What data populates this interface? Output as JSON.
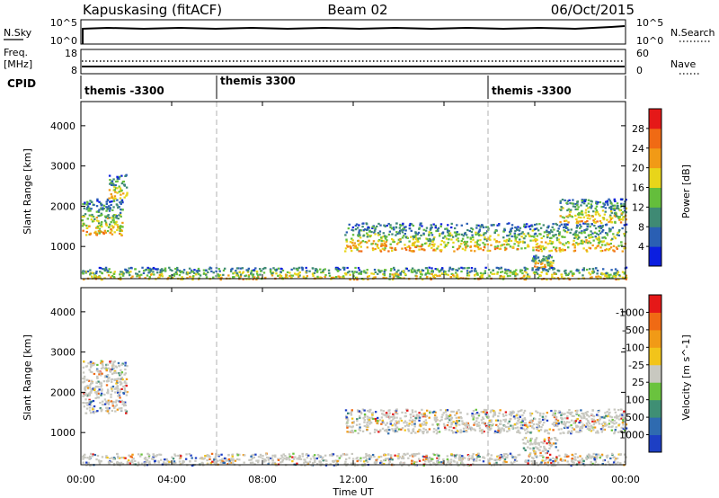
{
  "header": {
    "station": "Kapuskasing (fitACF)",
    "beam": "Beam 02",
    "date": "06/Oct/2015"
  },
  "strip_panels": {
    "nsky": {
      "label": "N.Sky",
      "ticks": [
        "10^5",
        "10^0"
      ]
    },
    "nsearch": {
      "label": "N.Search",
      "ticks": [
        "10^5",
        "10^0"
      ]
    },
    "freq": {
      "label_line1": "Freq.",
      "label_line2": "[MHz]",
      "ticks": [
        "18",
        "8"
      ]
    },
    "nave": {
      "label": "Nave",
      "ticks": [
        "60",
        "0"
      ]
    },
    "cpid": {
      "label": "CPID",
      "segments": [
        {
          "start_hour": 0,
          "text": "themis -3300"
        },
        {
          "start_hour": 6,
          "text": "themis 3300"
        },
        {
          "start_hour": 18,
          "text": "themis -3300"
        }
      ]
    }
  },
  "chart_data": [
    {
      "type": "heatmap",
      "name": "power-panel",
      "ylabel": "Slant Range [km]",
      "xlabel": "",
      "x_ticks": [
        "00:00",
        "04:00",
        "08:00",
        "12:00",
        "16:00",
        "20:00",
        "00:00"
      ],
      "xlim_hours": [
        0,
        24
      ],
      "y_ticks": [
        1000,
        2000,
        3000,
        4000
      ],
      "ylim": [
        200,
        4600
      ],
      "colorbar": {
        "label": "Power [dB]",
        "tick_labels": [
          "4",
          "8",
          "12",
          "16",
          "20",
          "24",
          "28"
        ],
        "colors": [
          "#0b1ee0",
          "#2a5fb3",
          "#3f8a74",
          "#64be3c",
          "#e8d51a",
          "#f19a16",
          "#f06a14",
          "#e51818"
        ]
      },
      "echo_regions": [
        {
          "t0": 0.0,
          "t1": 1.8,
          "r0": 1300,
          "r1": 2200
        },
        {
          "t0": 1.2,
          "t1": 2.0,
          "r0": 2200,
          "r1": 2800
        },
        {
          "t0": 11.6,
          "t1": 24.0,
          "r0": 900,
          "r1": 1600
        },
        {
          "t0": 21.0,
          "t1": 24.0,
          "r0": 1600,
          "r1": 2200
        },
        {
          "t0": 19.8,
          "t1": 20.8,
          "r0": 500,
          "r1": 800
        },
        {
          "t0": 0.0,
          "t1": 24.0,
          "r0": 200,
          "r1": 500
        }
      ]
    },
    {
      "type": "heatmap",
      "name": "velocity-panel",
      "ylabel": "Slant Range [km]",
      "xlabel": "Time UT",
      "x_ticks": [
        "00:00",
        "04:00",
        "08:00",
        "12:00",
        "16:00",
        "20:00",
        "00:00"
      ],
      "xlim_hours": [
        0,
        24
      ],
      "y_ticks": [
        1000,
        2000,
        3000,
        4000
      ],
      "ylim": [
        200,
        4600
      ],
      "colorbar": {
        "label": "Velocity [m s^-1]",
        "tick_labels": [
          "1000",
          "500",
          "100",
          "25",
          "-25",
          "-100",
          "-500",
          "-1000"
        ],
        "colors": [
          "#1d3fc4",
          "#2f6bb0",
          "#3f8f74",
          "#6ac33e",
          "#c8c8c0",
          "#f2c41a",
          "#f19a16",
          "#f06a14",
          "#e51818"
        ]
      },
      "echo_regions": [
        {
          "t0": 0.0,
          "t1": 2.0,
          "r0": 1500,
          "r1": 2800
        },
        {
          "t0": 11.6,
          "t1": 24.0,
          "r0": 1000,
          "r1": 1600
        },
        {
          "t0": 19.4,
          "t1": 21.0,
          "r0": 500,
          "r1": 900
        },
        {
          "t0": 0.0,
          "t1": 24.0,
          "r0": 200,
          "r1": 500
        }
      ]
    }
  ]
}
